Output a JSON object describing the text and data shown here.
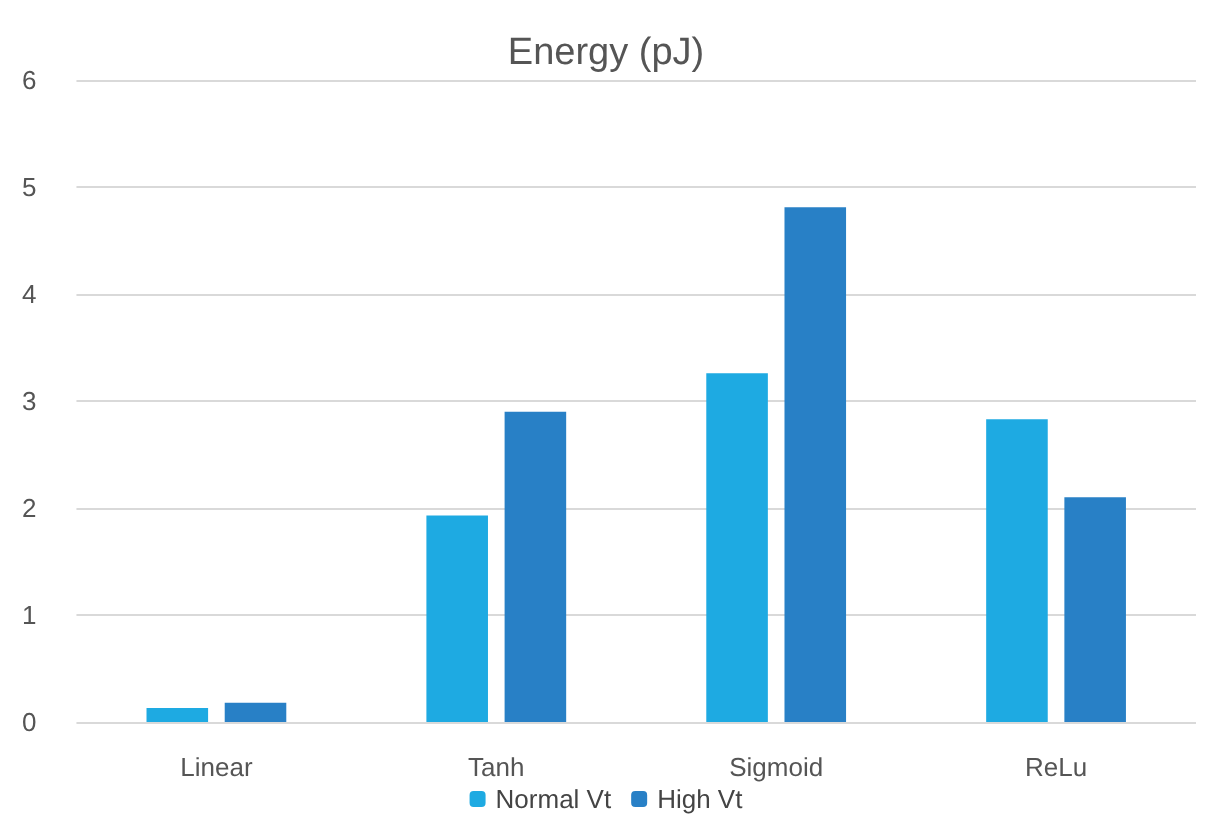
{
  "chart_data": {
    "type": "bar",
    "title": "Energy (pJ)",
    "categories": [
      "Linear",
      "Tanh",
      "Sigmoid",
      "ReLu"
    ],
    "series": [
      {
        "name": "Normal Vt",
        "color": "#1eaae2",
        "values": [
          0.13,
          1.93,
          3.26,
          2.83
        ]
      },
      {
        "name": "High Vt",
        "color": "#2880c6",
        "values": [
          0.18,
          2.9,
          4.81,
          2.1
        ]
      }
    ],
    "ylim": [
      0,
      6
    ],
    "yticks": [
      0,
      1,
      2,
      3,
      4,
      5,
      6
    ],
    "grid": "y",
    "legend": "bottom"
  }
}
